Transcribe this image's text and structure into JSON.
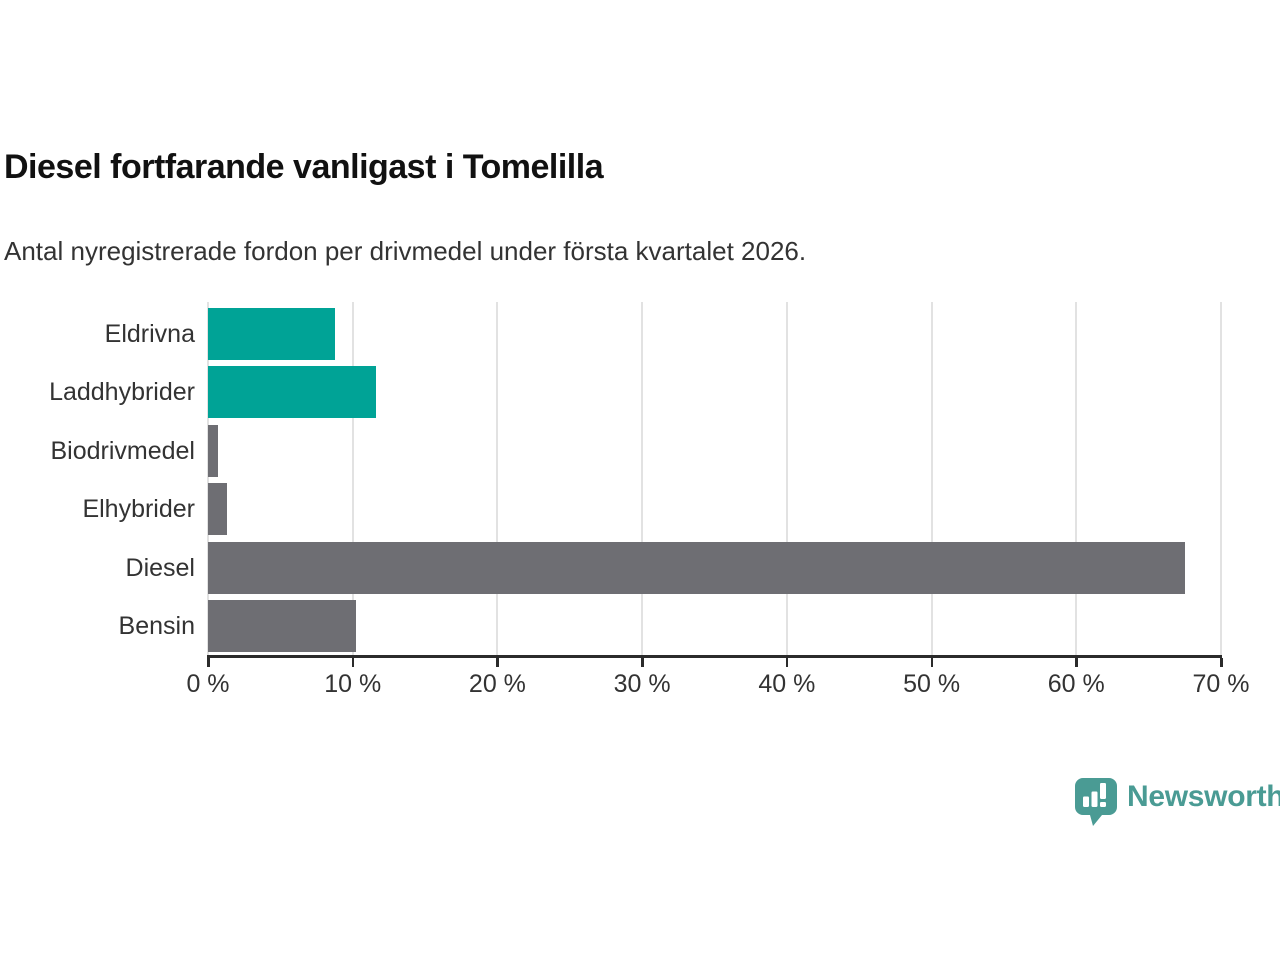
{
  "header": {
    "title": "Diesel fortfarande vanligast i Tomelilla",
    "subtitle": "Antal nyregistrerade fordon per drivmedel under första kvartalet 2026."
  },
  "chart_data": {
    "type": "bar",
    "orientation": "horizontal",
    "title": "Diesel fortfarande vanligast i Tomelilla",
    "subtitle": "Antal nyregistrerade fordon per drivmedel under första kvartalet 2026.",
    "categories": [
      "Eldrivna",
      "Laddhybrider",
      "Biodrivmedel",
      "Elhybrider",
      "Diesel",
      "Bensin"
    ],
    "values": [
      8.8,
      11.6,
      0.7,
      1.3,
      67.5,
      10.2
    ],
    "unit": "%",
    "bar_colors": [
      "#00A396",
      "#00A396",
      "#6E6E73",
      "#6E6E73",
      "#6E6E73",
      "#6E6E73"
    ],
    "xlim": [
      0,
      70
    ],
    "x_ticks": [
      0,
      10,
      20,
      30,
      40,
      50,
      60,
      70
    ],
    "x_tick_labels": [
      "0 %",
      "10 %",
      "20 %",
      "30 %",
      "40 %",
      "50 %",
      "60 %",
      "70 %"
    ],
    "grid": "vertical-gridlines-on",
    "legend": "none"
  },
  "footer": {
    "brand": "Newsworthy"
  },
  "colors": {
    "accent_teal": "#00A396",
    "bar_gray": "#6E6E73",
    "axis": "#2B2B2B",
    "grid": "#E2E2E2",
    "text": "#333333",
    "title_text": "#111111",
    "logo_teal": "#4A9B94"
  }
}
